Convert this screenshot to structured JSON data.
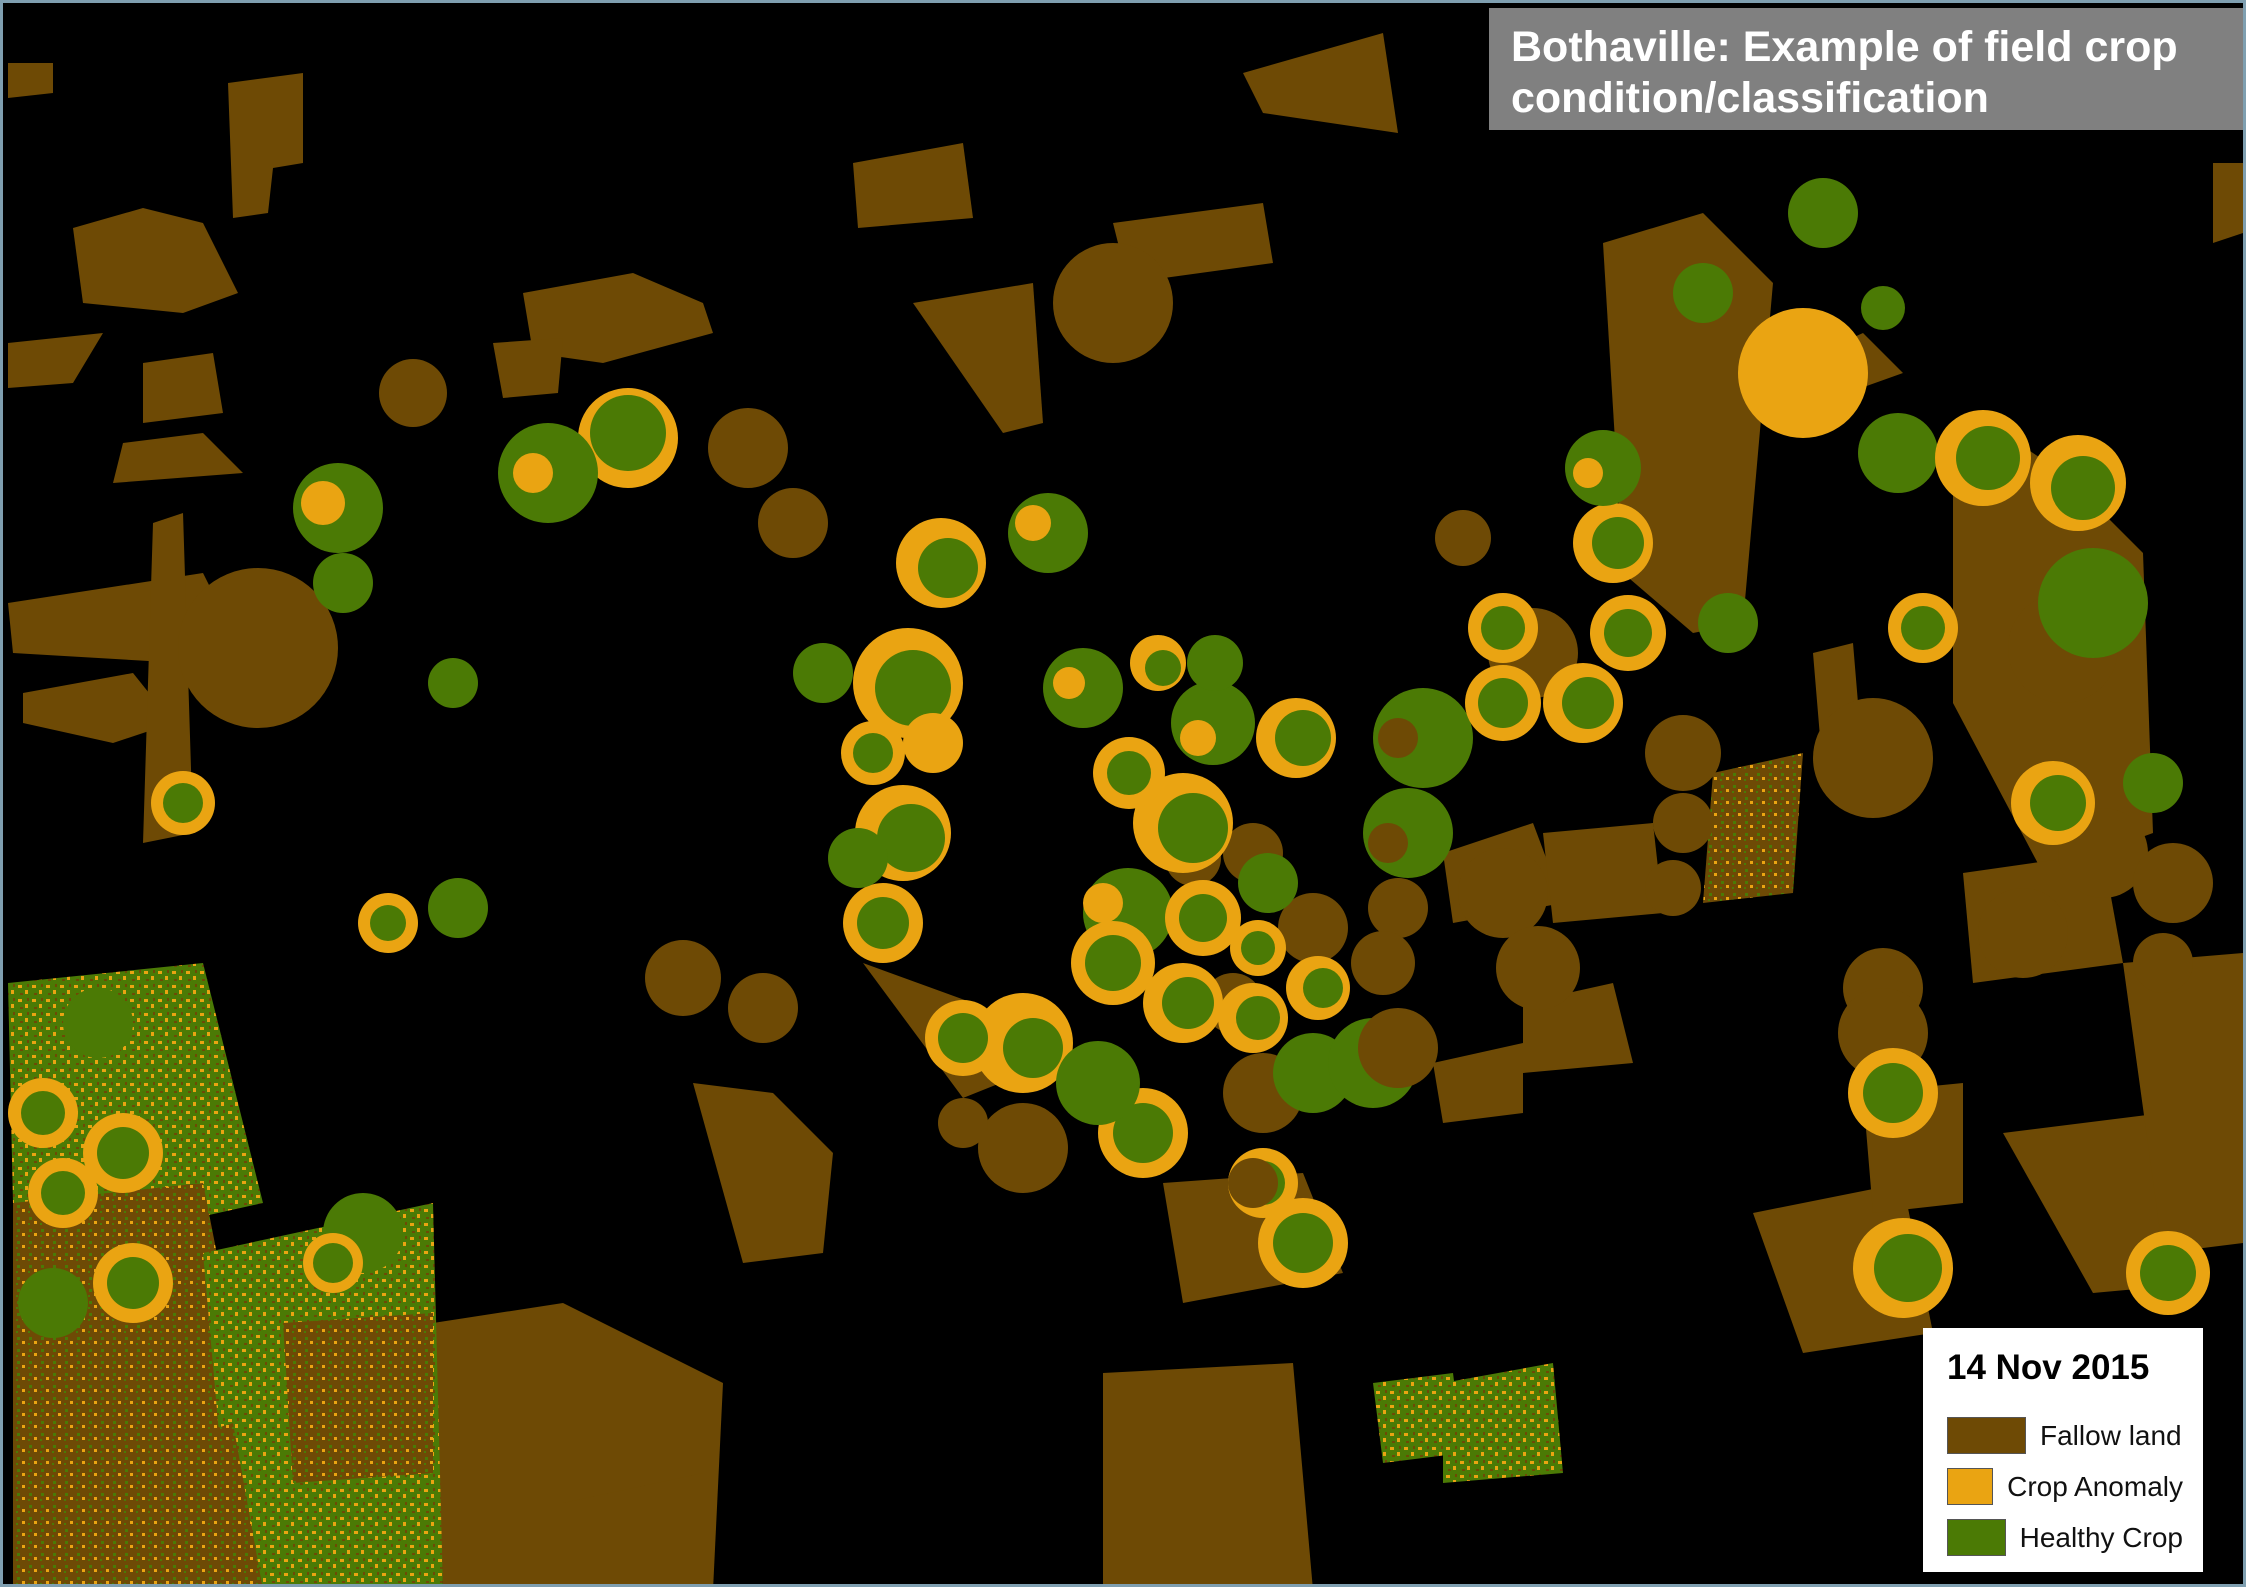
{
  "map": {
    "title_line1": "Bothaville: Example of field crop",
    "title_line2": "condition/classification",
    "legend": {
      "date": "14 Nov 2015",
      "items": [
        {
          "label": "Fallow land",
          "color": "#6e4a05"
        },
        {
          "label": "Crop Anomaly",
          "color": "#eaa412"
        },
        {
          "label": "Healthy Crop",
          "color": "#4b7a05"
        }
      ]
    },
    "colors": {
      "background": "#000000",
      "fallow": "#6e4a05",
      "anomaly": "#eaa412",
      "healthy": "#4b7a05",
      "title_box": "#808080"
    }
  }
}
